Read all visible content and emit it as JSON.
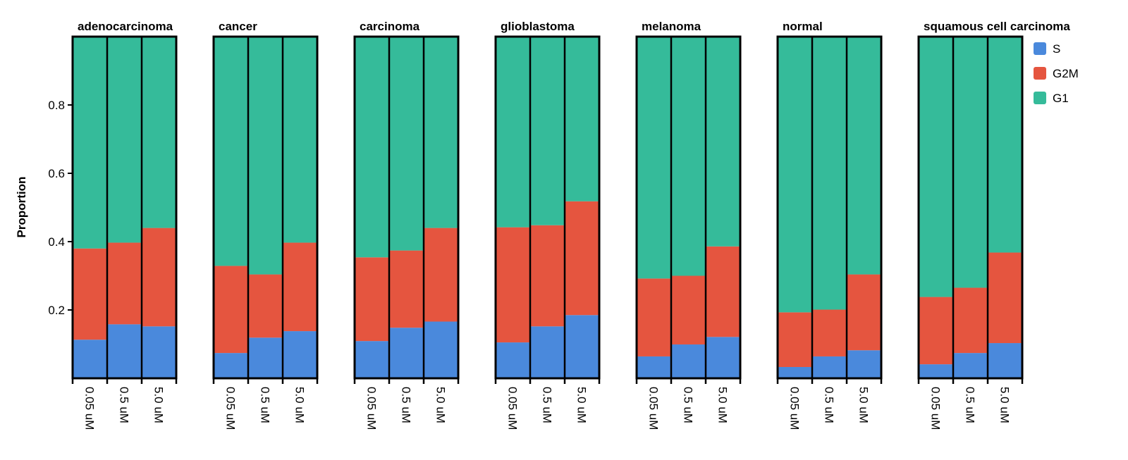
{
  "chart_data": {
    "type": "stacked-bar-facets",
    "ylabel": "Proportion",
    "ylim": [
      0,
      1
    ],
    "yticks": [
      0.2,
      0.4,
      0.6,
      0.8
    ],
    "categories": [
      "0.05 uM",
      "0.5 uM",
      "5.0 uM"
    ],
    "legend": [
      {
        "name": "S",
        "color": "#4a89dc"
      },
      {
        "name": "G2M",
        "color": "#e5553f"
      },
      {
        "name": "G1",
        "color": "#35bb9a"
      }
    ],
    "facets": [
      {
        "title": "adenocarcinoma",
        "series": [
          {
            "values": [
              0.113,
              0.158,
              0.152
            ]
          },
          {
            "values": [
              0.267,
              0.239,
              0.288
            ]
          },
          {
            "values": [
              0.62,
              0.603,
              0.56
            ]
          }
        ]
      },
      {
        "title": "cancer",
        "series": [
          {
            "values": [
              0.074,
              0.119,
              0.138
            ]
          },
          {
            "values": [
              0.255,
              0.185,
              0.259
            ]
          },
          {
            "values": [
              0.671,
              0.696,
              0.603
            ]
          }
        ]
      },
      {
        "title": "carcinoma",
        "series": [
          {
            "values": [
              0.109,
              0.148,
              0.166
            ]
          },
          {
            "values": [
              0.245,
              0.226,
              0.274
            ]
          },
          {
            "values": [
              0.646,
              0.626,
              0.56
            ]
          }
        ]
      },
      {
        "title": "glioblastoma",
        "series": [
          {
            "values": [
              0.105,
              0.152,
              0.185
            ]
          },
          {
            "values": [
              0.337,
              0.296,
              0.333
            ]
          },
          {
            "values": [
              0.558,
              0.552,
              0.482
            ]
          }
        ]
      },
      {
        "title": "melanoma",
        "series": [
          {
            "values": [
              0.064,
              0.099,
              0.121
            ]
          },
          {
            "values": [
              0.228,
              0.201,
              0.265
            ]
          },
          {
            "values": [
              0.708,
              0.7,
              0.614
            ]
          }
        ]
      },
      {
        "title": "normal",
        "series": [
          {
            "values": [
              0.033,
              0.064,
              0.082
            ]
          },
          {
            "values": [
              0.16,
              0.137,
              0.222
            ]
          },
          {
            "values": [
              0.807,
              0.799,
              0.696
            ]
          }
        ]
      },
      {
        "title": "squamous cell carcinoma",
        "series": [
          {
            "values": [
              0.041,
              0.074,
              0.103
            ]
          },
          {
            "values": [
              0.197,
              0.191,
              0.265
            ]
          },
          {
            "values": [
              0.762,
              0.735,
              0.632
            ]
          }
        ]
      }
    ]
  }
}
